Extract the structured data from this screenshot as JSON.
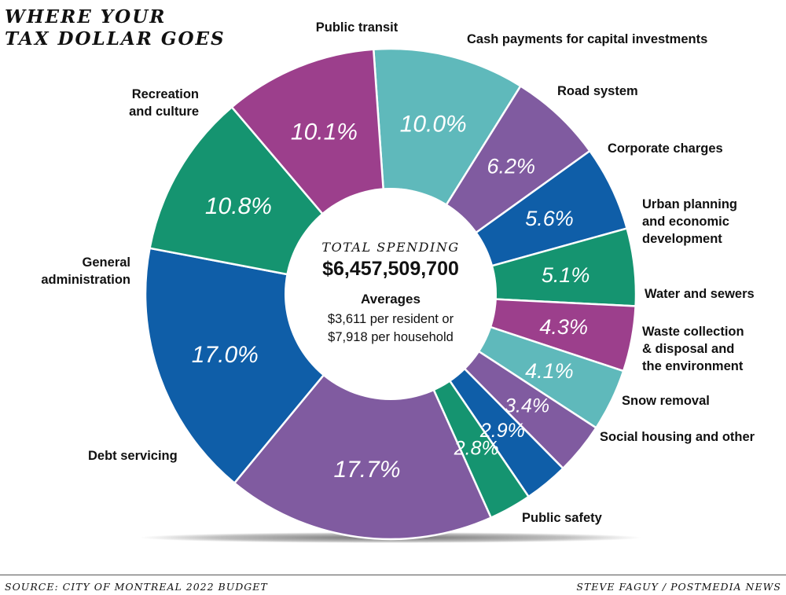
{
  "title": {
    "line1": "WHERE YOUR",
    "line2": "TAX DOLLAR GOES"
  },
  "center": {
    "heading": "TOTAL SPENDING",
    "total": "$6,457,509,700",
    "averages_label": "Averages",
    "per_resident": "$3,611 per resident or",
    "per_household": "$7,918 per household"
  },
  "footer": {
    "source": "SOURCE: CITY OF MONTREAL 2022 BUDGET",
    "credit": "STEVE FAGUY / POSTMEDIA NEWS"
  },
  "colors": {
    "teal": "#5fb9bb",
    "purple": "#805ba0",
    "blue": "#0f5ea8",
    "green": "#159470",
    "magenta": "#9c3f8c"
  },
  "chart_data": {
    "type": "pie",
    "title": "WHERE YOUR TAX DOLLAR GOES",
    "unit": "%",
    "slices": [
      {
        "label": "Public transit",
        "lines": [
          "Public transit"
        ],
        "value": 10.0,
        "display": "10.0%",
        "color": "#5fb9bb"
      },
      {
        "label": "Cash payments for capital investments",
        "lines": [
          "Cash payments for capital investments"
        ],
        "value": 6.2,
        "display": "6.2%",
        "color": "#805ba0"
      },
      {
        "label": "Road system",
        "lines": [
          "Road system"
        ],
        "value": 5.6,
        "display": "5.6%",
        "color": "#0f5ea8"
      },
      {
        "label": "Corporate charges",
        "lines": [
          "Corporate charges"
        ],
        "value": 5.1,
        "display": "5.1%",
        "color": "#159470"
      },
      {
        "label": "Urban planning and economic development",
        "lines": [
          "Urban planning",
          "and economic",
          "development"
        ],
        "value": 4.3,
        "display": "4.3%",
        "color": "#9c3f8c"
      },
      {
        "label": "Water and sewers",
        "lines": [
          "Water and sewers"
        ],
        "value": 4.1,
        "display": "4.1%",
        "color": "#5fb9bb"
      },
      {
        "label": "Waste collection & disposal and the environment",
        "lines": [
          "Waste collection",
          "& disposal and",
          "the environment"
        ],
        "value": 3.4,
        "display": "3.4%",
        "color": "#805ba0"
      },
      {
        "label": "Snow removal",
        "lines": [
          "Snow removal"
        ],
        "value": 2.9,
        "display": "2.9%",
        "color": "#0f5ea8"
      },
      {
        "label": "Social housing and other",
        "lines": [
          "Social housing and other"
        ],
        "value": 2.8,
        "display": "2.8%",
        "color": "#159470"
      },
      {
        "label": "Public safety",
        "lines": [
          "Public safety"
        ],
        "value": 17.7,
        "display": "17.7%",
        "color": "#805ba0"
      },
      {
        "label": "Debt servicing",
        "lines": [
          "Debt servicing"
        ],
        "value": 17.0,
        "display": "17.0%",
        "color": "#0f5ea8"
      },
      {
        "label": "General administration",
        "lines": [
          "General",
          "administration"
        ],
        "value": 10.8,
        "display": "10.8%",
        "color": "#159470"
      },
      {
        "label": "Recreation and culture",
        "lines": [
          "Recreation",
          "and culture"
        ],
        "value": 10.1,
        "display": "10.1%",
        "color": "#9c3f8c"
      }
    ]
  }
}
